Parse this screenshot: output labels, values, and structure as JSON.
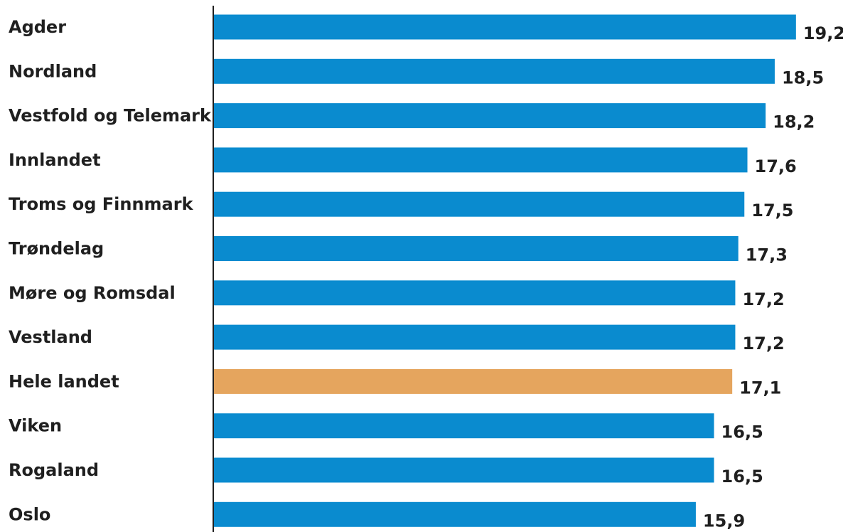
{
  "chart_data": {
    "type": "bar",
    "orientation": "horizontal",
    "categories": [
      "Agder",
      "Nordland",
      "Vestfold og Telemark",
      "Innlandet",
      "Troms og Finnmark",
      "Trøndelag",
      "Møre og Romsdal",
      "Vestland",
      "Hele landet",
      "Viken",
      "Rogaland",
      "Oslo"
    ],
    "values": [
      19.2,
      18.5,
      18.2,
      17.6,
      17.5,
      17.3,
      17.2,
      17.2,
      17.1,
      16.5,
      16.5,
      15.9
    ],
    "value_labels": [
      "19,2",
      "18,5",
      "18,2",
      "17,6",
      "17,5",
      "17,3",
      "17,2",
      "17,2",
      "17,1",
      "16,5",
      "16,5",
      "15,9"
    ],
    "highlight_category": "Hele landet",
    "colors": {
      "bar": "#0a8bcf",
      "highlight": "#e5a55e",
      "axis": "#1f1f1f"
    },
    "xlim": [
      0,
      20
    ],
    "grid": false,
    "legend": "none"
  }
}
